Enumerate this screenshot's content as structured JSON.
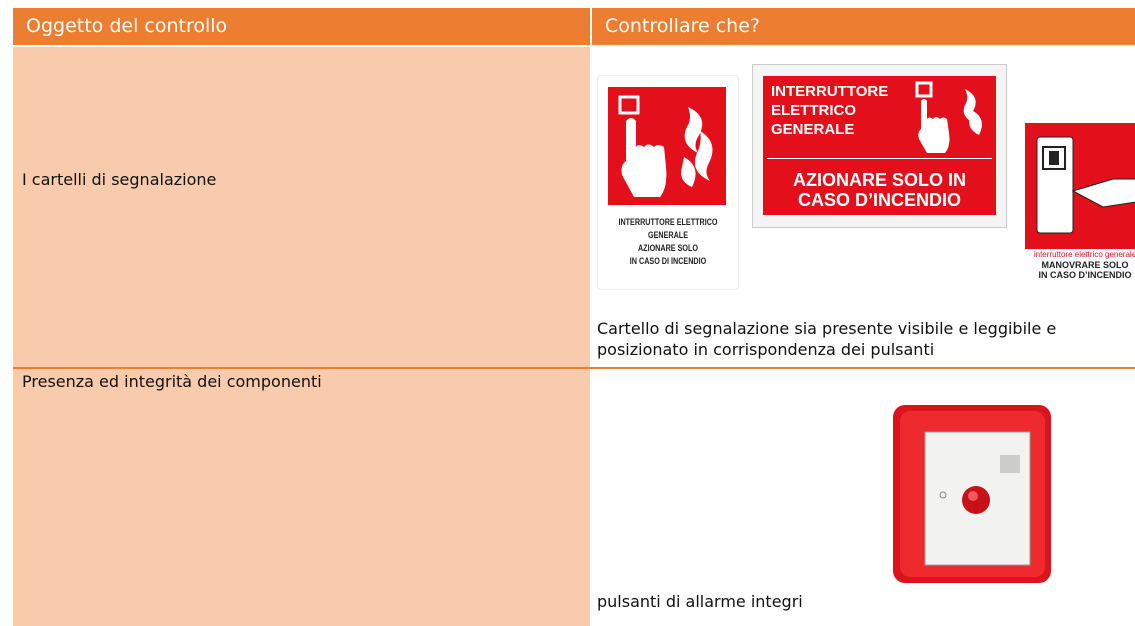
{
  "table": {
    "header": [
      "Oggetto del controllo",
      "Controllare che?"
    ],
    "rows": [
      {
        "object": "I cartelli di segnalazione",
        "check": [
          "Cartello di segnalazione sia presente visibile e leggibile e",
          "posizionato in corrispondenza dei pulsanti"
        ]
      },
      {
        "object": "Presenza ed integrità dei componenti",
        "check": [
          "pulsanti di allarme integri"
        ]
      }
    ]
  },
  "signs": [
    {
      "lines": [
        "INTERRUTTORE ELETTRICO",
        "GENERALE",
        "AZIONARE SOLO",
        "IN CASO DI INCENDIO"
      ]
    },
    {
      "top": [
        "INTERRUTTORE",
        "ELETTRICO",
        "GENERALE"
      ],
      "bottom": [
        "AZIONARE SOLO IN",
        "CASO D’INCENDIO"
      ]
    },
    {
      "lines": [
        "interruttore elettrico generale",
        "MANOVRARE SOLO",
        "IN CASO D’INCENDIO"
      ]
    }
  ]
}
